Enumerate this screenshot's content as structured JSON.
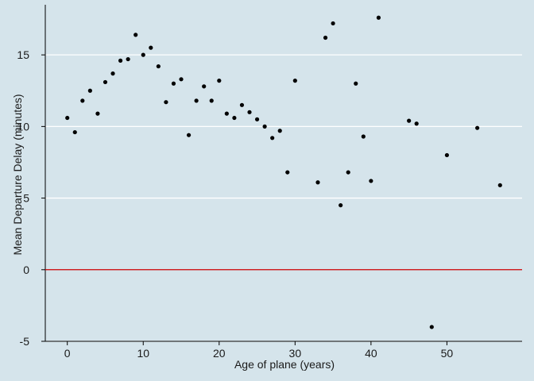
{
  "chart_data": {
    "type": "scatter",
    "title": "",
    "xlabel": "Age of plane (years)",
    "ylabel": "Mean Departure Delay (minutes)",
    "xlim": [
      -2.9,
      59.9
    ],
    "ylim": [
      -5.0,
      18.5
    ],
    "xticks": [
      0,
      10,
      20,
      30,
      40,
      50
    ],
    "yticks": [
      -5,
      0,
      5,
      10,
      15
    ],
    "grid": "horizontal",
    "reference_line": {
      "y": 0,
      "color": "#cc0000"
    },
    "point_color": "#000000",
    "background_color": "#d5e4eb",
    "grid_color": "#ffffff",
    "points": [
      {
        "x": 0,
        "y": 10.6
      },
      {
        "x": 1,
        "y": 9.6
      },
      {
        "x": 2,
        "y": 11.8
      },
      {
        "x": 3,
        "y": 12.5
      },
      {
        "x": 4,
        "y": 10.9
      },
      {
        "x": 5,
        "y": 13.1
      },
      {
        "x": 6,
        "y": 13.7
      },
      {
        "x": 7,
        "y": 14.6
      },
      {
        "x": 8,
        "y": 14.7
      },
      {
        "x": 9,
        "y": 16.4
      },
      {
        "x": 10,
        "y": 15.0
      },
      {
        "x": 11,
        "y": 15.5
      },
      {
        "x": 12,
        "y": 14.2
      },
      {
        "x": 13,
        "y": 11.7
      },
      {
        "x": 14,
        "y": 13.0
      },
      {
        "x": 15,
        "y": 13.3
      },
      {
        "x": 16,
        "y": 9.4
      },
      {
        "x": 17,
        "y": 11.8
      },
      {
        "x": 18,
        "y": 12.8
      },
      {
        "x": 19,
        "y": 11.8
      },
      {
        "x": 20,
        "y": 13.2
      },
      {
        "x": 21,
        "y": 10.9
      },
      {
        "x": 22,
        "y": 10.6
      },
      {
        "x": 23,
        "y": 11.5
      },
      {
        "x": 24,
        "y": 11.0
      },
      {
        "x": 25,
        "y": 10.5
      },
      {
        "x": 26,
        "y": 10.0
      },
      {
        "x": 27,
        "y": 9.2
      },
      {
        "x": 28,
        "y": 9.7
      },
      {
        "x": 29,
        "y": 6.8
      },
      {
        "x": 30,
        "y": 13.2
      },
      {
        "x": 33,
        "y": 6.1
      },
      {
        "x": 34,
        "y": 16.2
      },
      {
        "x": 35,
        "y": 17.2
      },
      {
        "x": 36,
        "y": 4.5
      },
      {
        "x": 37,
        "y": 6.8
      },
      {
        "x": 38,
        "y": 13.0
      },
      {
        "x": 39,
        "y": 9.3
      },
      {
        "x": 40,
        "y": 6.2
      },
      {
        "x": 41,
        "y": 17.6
      },
      {
        "x": 45,
        "y": 10.4
      },
      {
        "x": 46,
        "y": 10.2
      },
      {
        "x": 48,
        "y": -4.0
      },
      {
        "x": 50,
        "y": 8.0
      },
      {
        "x": 54,
        "y": 9.9
      },
      {
        "x": 57,
        "y": 5.9
      }
    ]
  }
}
